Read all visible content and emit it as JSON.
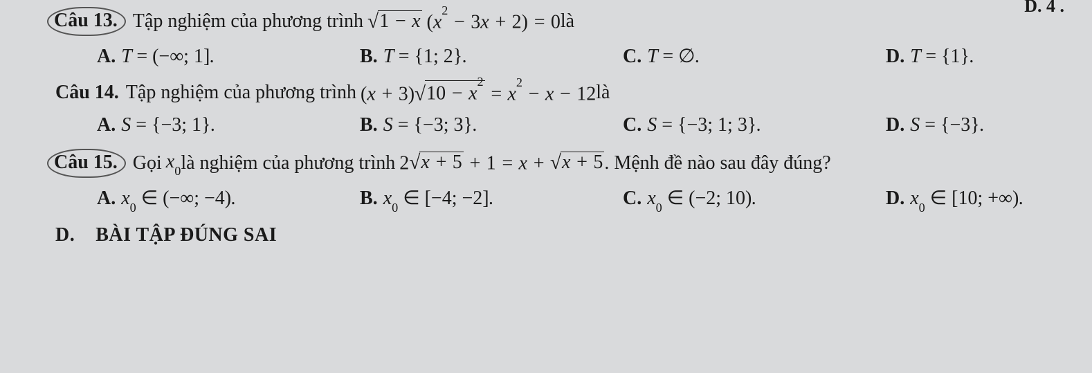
{
  "top_right_cut": "D. 4 .",
  "questions": [
    {
      "label": "Câu 13.",
      "stem_pre": "Tập nghiệm của phương trình ",
      "stem_post": " là",
      "circled": true,
      "options": {
        "A": "T = (−∞;1].",
        "B": "T = {1;2}.",
        "C": "T = ∅.",
        "D": "T = {1}."
      }
    },
    {
      "label": "Câu 14.",
      "stem_pre": "Tập nghiệm của phương trình ",
      "stem_post": " là",
      "circled": false,
      "options": {
        "A": "S = {−3;1}.",
        "B": "S = {−3;3}.",
        "C": "S = {−3;1;3}.",
        "D": "S = {−3}."
      }
    },
    {
      "label": "Câu 15.",
      "stem_pre": "Gọi ",
      "stem_mid": " là nghiệm của phương trình ",
      "stem_post": ". Mệnh đề nào sau đây đúng?",
      "circled": true,
      "options": {
        "A": "x₀ ∈ (−∞;−4).",
        "B": "x₀ ∈ [−4;−2].",
        "C": "x₀ ∈ (−2;10).",
        "D": "x₀ ∈ [10;+∞)."
      }
    }
  ],
  "section": {
    "d": "D.",
    "title": "BÀI TẬP ĐÚNG SAI"
  }
}
